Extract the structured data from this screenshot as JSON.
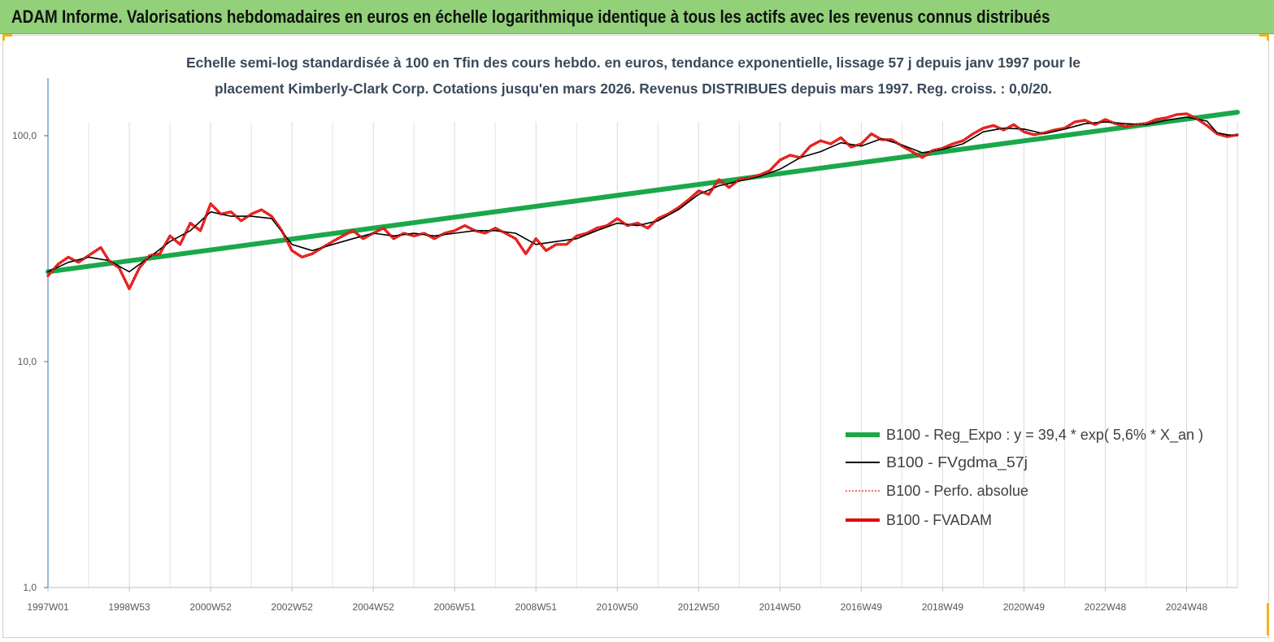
{
  "header": {
    "title": "ADAM Informe. Valorisations hebdomadaires en euros en échelle logarithmique identique à tous les actifs avec les revenus connus distribués"
  },
  "chart_data": {
    "type": "line",
    "subtitle_lines": [
      "Echelle semi-log standardisée à 100 en Tfin des cours hebdo. en euros, tendance exponentielle, lissage 57 j depuis janv 1997 pour le",
      "placement Kimberly-Clark Corp. Cotations jusqu'en mars 2026. Revenus DISTRIBUES depuis mars 1997. Reg. croiss. : 0,0/20."
    ],
    "y_scale": "log",
    "ylim": [
      1,
      180
    ],
    "y_ticks": [
      {
        "value": 1,
        "label": "1,0"
      },
      {
        "value": 10,
        "label": "10,0"
      },
      {
        "value": 100,
        "label": "100,0"
      }
    ],
    "x_range": [
      1997.0,
      2026.25
    ],
    "x_ticks": [
      {
        "x": 1997.0,
        "label": "1997W01"
      },
      {
        "x": 1999.0,
        "label": "1998W53"
      },
      {
        "x": 2001.0,
        "label": "2000W52"
      },
      {
        "x": 2003.0,
        "label": "2002W52"
      },
      {
        "x": 2005.0,
        "label": "2004W52"
      },
      {
        "x": 2007.0,
        "label": "2006W51"
      },
      {
        "x": 2009.0,
        "label": "2008W51"
      },
      {
        "x": 2011.0,
        "label": "2010W50"
      },
      {
        "x": 2013.0,
        "label": "2012W50"
      },
      {
        "x": 2015.0,
        "label": "2014W50"
      },
      {
        "x": 2017.0,
        "label": "2016W49"
      },
      {
        "x": 2019.0,
        "label": "2018W49"
      },
      {
        "x": 2021.0,
        "label": "2020W49"
      },
      {
        "x": 2023.0,
        "label": "2022W48"
      },
      {
        "x": 2025.0,
        "label": "2024W48"
      }
    ],
    "grid": "vertical",
    "legend_position": "bottom-right",
    "series": [
      {
        "name": "B100 - Reg_Expo : y = 39,4 * exp( 5,6% *  X_an )",
        "color": "#1aa84a",
        "style": "solid-thick",
        "points": [
          [
            1997.0,
            25
          ],
          [
            2026.25,
            127
          ]
        ]
      },
      {
        "name": "B100 - FVgdma_57j",
        "color": "#000000",
        "style": "solid",
        "points": [
          [
            1997.0,
            25
          ],
          [
            1997.5,
            27.5
          ],
          [
            1998.0,
            29
          ],
          [
            1998.5,
            28
          ],
          [
            1999.0,
            25
          ],
          [
            1999.5,
            29
          ],
          [
            2000.0,
            34
          ],
          [
            2000.5,
            38
          ],
          [
            2001.0,
            46
          ],
          [
            2001.5,
            44
          ],
          [
            2002.0,
            44
          ],
          [
            2002.5,
            43
          ],
          [
            2003.0,
            33
          ],
          [
            2003.5,
            31
          ],
          [
            2004.0,
            33
          ],
          [
            2004.5,
            35
          ],
          [
            2005.0,
            37
          ],
          [
            2005.5,
            36
          ],
          [
            2006.0,
            37
          ],
          [
            2006.5,
            36
          ],
          [
            2007.0,
            37
          ],
          [
            2007.5,
            38
          ],
          [
            2008.0,
            38
          ],
          [
            2008.5,
            37
          ],
          [
            2009.0,
            33
          ],
          [
            2009.5,
            34
          ],
          [
            2010.0,
            35
          ],
          [
            2010.5,
            38
          ],
          [
            2011.0,
            41
          ],
          [
            2011.5,
            40
          ],
          [
            2012.0,
            42
          ],
          [
            2012.5,
            47
          ],
          [
            2013.0,
            55
          ],
          [
            2013.5,
            60
          ],
          [
            2014.0,
            63
          ],
          [
            2014.5,
            66
          ],
          [
            2015.0,
            71
          ],
          [
            2015.5,
            80
          ],
          [
            2016.0,
            85
          ],
          [
            2016.5,
            93
          ],
          [
            2017.0,
            90
          ],
          [
            2017.5,
            97
          ],
          [
            2018.0,
            91
          ],
          [
            2018.5,
            84
          ],
          [
            2019.0,
            87
          ],
          [
            2019.5,
            92
          ],
          [
            2020.0,
            104
          ],
          [
            2020.5,
            108
          ],
          [
            2021.0,
            107
          ],
          [
            2021.5,
            102
          ],
          [
            2022.0,
            107
          ],
          [
            2022.5,
            113
          ],
          [
            2023.0,
            115
          ],
          [
            2023.5,
            113
          ],
          [
            2024.0,
            112
          ],
          [
            2024.5,
            117
          ],
          [
            2025.0,
            121
          ],
          [
            2025.5,
            116
          ],
          [
            2025.75,
            103
          ],
          [
            2026.0,
            101
          ],
          [
            2026.25,
            100
          ]
        ]
      },
      {
        "name": "B100 - Perfo. absolue",
        "color": "#e8463c",
        "style": "dotted",
        "points": [
          [
            1997.0,
            24
          ],
          [
            1997.25,
            27
          ],
          [
            1997.5,
            29
          ],
          [
            1997.75,
            27.5
          ],
          [
            1998.0,
            29.5
          ],
          [
            1998.3,
            32
          ],
          [
            1998.5,
            28
          ],
          [
            1998.75,
            26
          ],
          [
            1999.0,
            21
          ],
          [
            1999.25,
            26
          ],
          [
            1999.5,
            29.5
          ],
          [
            1999.75,
            30
          ],
          [
            2000.0,
            36
          ],
          [
            2000.25,
            33
          ],
          [
            2000.5,
            41
          ],
          [
            2000.75,
            38
          ],
          [
            2001.0,
            50
          ],
          [
            2001.25,
            45
          ],
          [
            2001.5,
            46
          ],
          [
            2001.75,
            42
          ],
          [
            2002.0,
            45
          ],
          [
            2002.25,
            47
          ],
          [
            2002.5,
            44
          ],
          [
            2002.75,
            38
          ],
          [
            2003.0,
            31
          ],
          [
            2003.25,
            29
          ],
          [
            2003.5,
            30
          ],
          [
            2003.75,
            32
          ],
          [
            2004.0,
            34
          ],
          [
            2004.25,
            36
          ],
          [
            2004.5,
            38
          ],
          [
            2004.75,
            35
          ],
          [
            2005.0,
            37
          ],
          [
            2005.25,
            39
          ],
          [
            2005.5,
            35
          ],
          [
            2005.75,
            37
          ],
          [
            2006.0,
            36
          ],
          [
            2006.25,
            37
          ],
          [
            2006.5,
            35
          ],
          [
            2006.75,
            37
          ],
          [
            2007.0,
            38
          ],
          [
            2007.25,
            40
          ],
          [
            2007.5,
            38
          ],
          [
            2007.75,
            37
          ],
          [
            2008.0,
            39
          ],
          [
            2008.25,
            37
          ],
          [
            2008.5,
            35
          ],
          [
            2008.75,
            30
          ],
          [
            2009.0,
            35
          ],
          [
            2009.25,
            31
          ],
          [
            2009.5,
            33
          ],
          [
            2009.75,
            33
          ],
          [
            2010.0,
            36
          ],
          [
            2010.25,
            37
          ],
          [
            2010.5,
            39
          ],
          [
            2010.75,
            40
          ],
          [
            2011.0,
            43
          ],
          [
            2011.25,
            40
          ],
          [
            2011.5,
            41
          ],
          [
            2011.75,
            39
          ],
          [
            2012.0,
            43
          ],
          [
            2012.25,
            45
          ],
          [
            2012.5,
            48
          ],
          [
            2012.75,
            52
          ],
          [
            2013.0,
            57
          ],
          [
            2013.25,
            55
          ],
          [
            2013.5,
            64
          ],
          [
            2013.75,
            59
          ],
          [
            2014.0,
            64
          ],
          [
            2014.25,
            65
          ],
          [
            2014.5,
            67
          ],
          [
            2014.75,
            70
          ],
          [
            2015.0,
            78
          ],
          [
            2015.25,
            82
          ],
          [
            2015.5,
            80
          ],
          [
            2015.75,
            90
          ],
          [
            2016.0,
            95
          ],
          [
            2016.25,
            92
          ],
          [
            2016.5,
            98
          ],
          [
            2016.75,
            89
          ],
          [
            2017.0,
            92
          ],
          [
            2017.25,
            102
          ],
          [
            2017.5,
            96
          ],
          [
            2017.75,
            96
          ],
          [
            2018.0,
            90
          ],
          [
            2018.25,
            85
          ],
          [
            2018.5,
            80
          ],
          [
            2018.75,
            86
          ],
          [
            2019.0,
            88
          ],
          [
            2019.25,
            92
          ],
          [
            2019.5,
            95
          ],
          [
            2019.75,
            102
          ],
          [
            2020.0,
            108
          ],
          [
            2020.25,
            111
          ],
          [
            2020.5,
            106
          ],
          [
            2020.75,
            112
          ],
          [
            2021.0,
            104
          ],
          [
            2021.25,
            101
          ],
          [
            2021.5,
            103
          ],
          [
            2021.75,
            106
          ],
          [
            2022.0,
            108
          ],
          [
            2022.25,
            115
          ],
          [
            2022.5,
            117
          ],
          [
            2022.75,
            112
          ],
          [
            2023.0,
            118
          ],
          [
            2023.25,
            113
          ],
          [
            2023.5,
            110
          ],
          [
            2023.75,
            112
          ],
          [
            2024.0,
            113
          ],
          [
            2024.25,
            118
          ],
          [
            2024.5,
            120
          ],
          [
            2024.75,
            124
          ],
          [
            2025.0,
            125
          ],
          [
            2025.25,
            119
          ],
          [
            2025.5,
            111
          ],
          [
            2025.75,
            102
          ],
          [
            2026.0,
            99
          ],
          [
            2026.25,
            101
          ]
        ]
      },
      {
        "name": "B100 - FVADAM",
        "color": "#e60000",
        "style": "solid-thick",
        "points": "same-as-perfo"
      }
    ]
  }
}
